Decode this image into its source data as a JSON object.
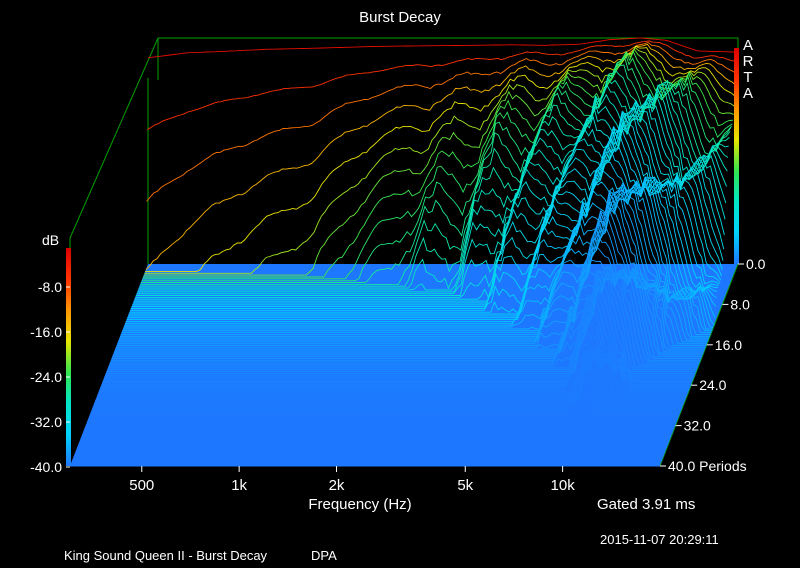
{
  "chart_data": {
    "type": "waterfall-3d",
    "title": "Burst Decay",
    "xlabel": "Frequency (Hz)",
    "zlabel": "dB",
    "ylabel": "Periods",
    "x_scale": "log",
    "xlim": [
      300,
      20000
    ],
    "x_ticks": [
      {
        "value": 500,
        "label": "500"
      },
      {
        "value": 1000,
        "label": "1k"
      },
      {
        "value": 2000,
        "label": "2k"
      },
      {
        "value": 5000,
        "label": "5k"
      },
      {
        "value": 10000,
        "label": "10k"
      }
    ],
    "z_ticks": [
      "-8.0",
      "-16.0",
      "-24.0",
      "-32.0",
      "-40.0"
    ],
    "zlim": [
      -40,
      0
    ],
    "y_ticks": [
      "0.0",
      "8.0",
      "16.0",
      "24.0",
      "32.0",
      "40.0"
    ],
    "y_unit_suffix": " Periods",
    "ylim": [
      0,
      40
    ],
    "colormap": [
      "#1e78ff",
      "#00d2ff",
      "#00e6c8",
      "#32e650",
      "#e6e600",
      "#ff9600",
      "#ff3200",
      "#dc0000"
    ],
    "floor_color": "#1e78ff",
    "frame_color": "#00a000",
    "front_profile_db": [
      {
        "hz": 300,
        "db": -3.5
      },
      {
        "hz": 400,
        "db": -2.6
      },
      {
        "hz": 500,
        "db": -2.4
      },
      {
        "hz": 700,
        "db": -2.0
      },
      {
        "hz": 1000,
        "db": -1.8
      },
      {
        "hz": 1500,
        "db": -1.5
      },
      {
        "hz": 2000,
        "db": -1.4
      },
      {
        "hz": 3000,
        "db": -1.3
      },
      {
        "hz": 4000,
        "db": -1.2
      },
      {
        "hz": 5000,
        "db": -1.3
      },
      {
        "hz": 6500,
        "db": -1.1
      },
      {
        "hz": 8000,
        "db": -0.3
      },
      {
        "hz": 10000,
        "db": 0
      },
      {
        "hz": 12000,
        "db": -0.4
      },
      {
        "hz": 15000,
        "db": -2.3
      },
      {
        "hz": 20000,
        "db": -2.5
      }
    ],
    "decay_depth_periods": [
      {
        "hz": 300,
        "periods": 1
      },
      {
        "hz": 1000,
        "periods": 2
      },
      {
        "hz": 3000,
        "periods": 5
      },
      {
        "hz": 5000,
        "periods": 10
      },
      {
        "hz": 8000,
        "periods": 18
      },
      {
        "hz": 10000,
        "periods": 28
      },
      {
        "hz": 12000,
        "periods": 22
      },
      {
        "hz": 15000,
        "periods": 15
      },
      {
        "hz": 20000,
        "periods": 10
      }
    ],
    "gated": "Gated 3.91 ms"
  },
  "branding": {
    "side_label": "ARTA"
  },
  "footer": {
    "timestamp": "2015-11-07  20:29:11",
    "caption": "King Sound Queen II - Burst Decay",
    "mic": "DPA"
  }
}
